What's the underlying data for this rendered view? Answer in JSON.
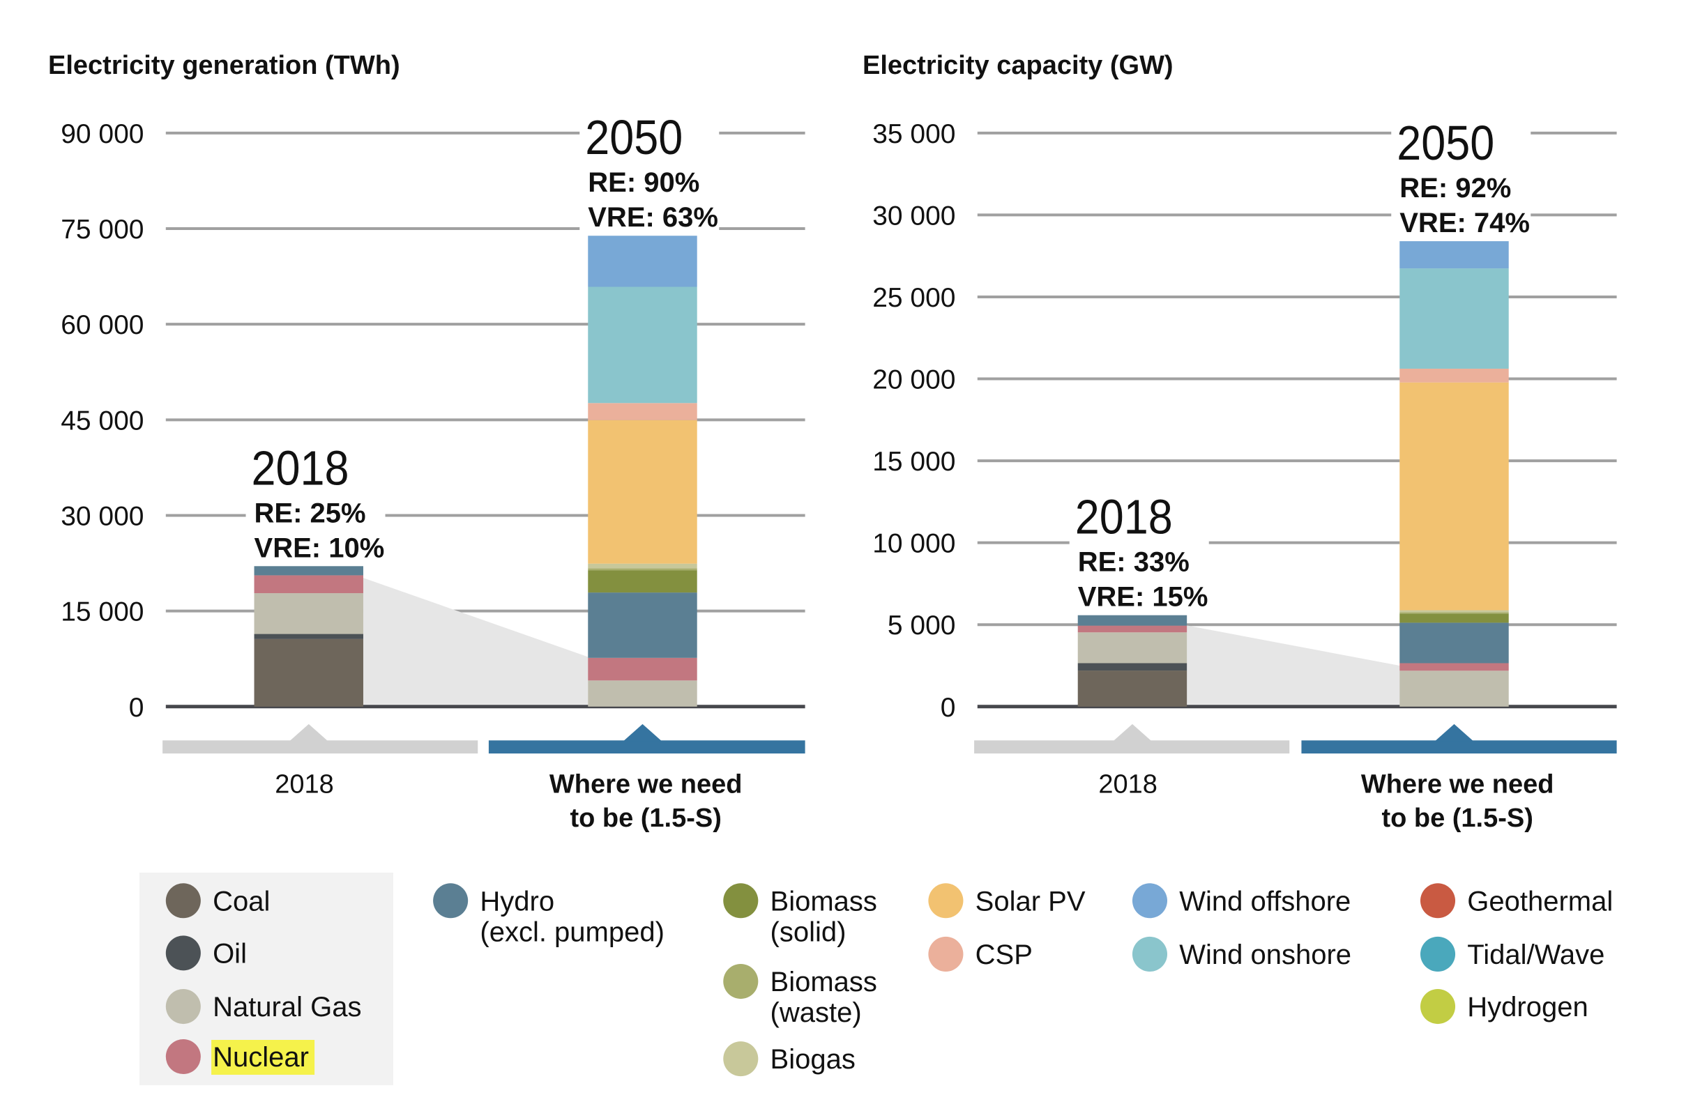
{
  "legend": {
    "items": [
      {
        "key": "coal",
        "label": [
          "Coal"
        ],
        "color": "#6e665b"
      },
      {
        "key": "oil",
        "label": [
          "Oil"
        ],
        "color": "#4c5256"
      },
      {
        "key": "gas",
        "label": [
          "Natural Gas"
        ],
        "color": "#c0beae"
      },
      {
        "key": "nuclear",
        "label": [
          "Nuclear"
        ],
        "color": "#c27780",
        "highlight": "#f5f24b"
      },
      {
        "key": "hydro",
        "label": [
          "Hydro",
          "(excl. pumped)"
        ],
        "color": "#5b7f93"
      },
      {
        "key": "biomass_solid",
        "label": [
          "Biomass",
          "(solid)"
        ],
        "color": "#83903f"
      },
      {
        "key": "biomass_waste",
        "label": [
          "Biomass",
          "(waste)"
        ],
        "color": "#a8ae6d"
      },
      {
        "key": "biogas",
        "label": [
          "Biogas"
        ],
        "color": "#c8c89a"
      },
      {
        "key": "solar_pv",
        "label": [
          "Solar PV"
        ],
        "color": "#f2c271"
      },
      {
        "key": "csp",
        "label": [
          "CSP"
        ],
        "color": "#ebb09b"
      },
      {
        "key": "wind_offshore",
        "label": [
          "Wind offshore"
        ],
        "color": "#78a8d6"
      },
      {
        "key": "wind_onshore",
        "label": [
          "Wind onshore"
        ],
        "color": "#8ac5cc"
      },
      {
        "key": "geothermal",
        "label": [
          "Geothermal"
        ],
        "color": "#c95a42"
      },
      {
        "key": "tidal",
        "label": [
          "Tidal/Wave"
        ],
        "color": "#4aa8bc"
      },
      {
        "key": "hydrogen",
        "label": [
          "Hydrogen"
        ],
        "color": "#c2cd44"
      }
    ]
  },
  "x_categories": [
    {
      "label": [
        "2018"
      ],
      "band_color": "#d1d1d1",
      "bold": false
    },
    {
      "label": [
        "Where we need",
        "to be (1.5-S)"
      ],
      "band_color": "#3574a0",
      "bold": true
    }
  ],
  "chart_data": [
    {
      "type": "bar",
      "stacked": true,
      "title": "Electricity generation (TWh)",
      "ylabel": "TWh",
      "ylim": [
        0,
        90000
      ],
      "yticks": [
        0,
        15000,
        30000,
        45000,
        60000,
        75000,
        90000
      ],
      "ytick_labels": [
        "0",
        "15 000",
        "30 000",
        "45 000",
        "60 000",
        "75 000",
        "90 000"
      ],
      "grid": true,
      "categories": [
        "2018",
        "Where we need to be (1.5-S)"
      ],
      "annotations": [
        {
          "year": "2018",
          "re": "RE: 25%",
          "vre": "VRE: 10%"
        },
        {
          "year": "2050",
          "re": "RE: 90%",
          "vre": "VRE: 63%"
        }
      ],
      "non_renewable_wedge": [
        20200,
        7800
      ],
      "series": [
        {
          "name": "Coal",
          "key": "coal",
          "values": [
            10600,
            0
          ]
        },
        {
          "name": "Oil",
          "key": "oil",
          "values": [
            800,
            0
          ]
        },
        {
          "name": "Natural Gas",
          "key": "gas",
          "values": [
            6400,
            4100
          ]
        },
        {
          "name": "Nuclear",
          "key": "nuclear",
          "values": [
            2800,
            3550
          ]
        },
        {
          "name": "Hydro (excl. pumped)",
          "key": "hydro",
          "values": [
            4300,
            10250
          ]
        },
        {
          "name": "Biomass (solid)",
          "key": "biomass_solid",
          "values": [
            350,
            3500
          ]
        },
        {
          "name": "Biomass (waste)",
          "key": "biomass_waste",
          "values": [
            80,
            300
          ]
        },
        {
          "name": "Biogas",
          "key": "biogas",
          "values": [
            100,
            730
          ]
        },
        {
          "name": "Solar PV",
          "key": "solar_pv",
          "values": [
            600,
            22530
          ]
        },
        {
          "name": "CSP",
          "key": "csp",
          "values": [
            20,
            2670
          ]
        },
        {
          "name": "Wind onshore",
          "key": "wind_onshore",
          "values": [
            1200,
            18240
          ]
        },
        {
          "name": "Wind offshore",
          "key": "wind_offshore",
          "values": [
            70,
            8050
          ]
        },
        {
          "name": "Geothermal",
          "key": "geothermal",
          "values": [
            90,
            1410
          ]
        },
        {
          "name": "Tidal/Wave",
          "key": "tidal",
          "values": [
            0,
            630
          ]
        },
        {
          "name": "Hydrogen",
          "key": "hydrogen",
          "values": [
            0,
            1990
          ]
        }
      ]
    },
    {
      "type": "bar",
      "stacked": true,
      "title": "Electricity capacity (GW)",
      "ylabel": "GW",
      "ylim": [
        0,
        35000
      ],
      "yticks": [
        0,
        5000,
        10000,
        15000,
        20000,
        25000,
        30000,
        35000
      ],
      "ytick_labels": [
        "0",
        "5 000",
        "10 000",
        "15 000",
        "20 000",
        "25 000",
        "30 000",
        "35 000"
      ],
      "grid": true,
      "categories": [
        "2018",
        "Where we need to be (1.5-S)"
      ],
      "annotations": [
        {
          "year": "2018",
          "re": "RE: 33%",
          "vre": "VRE: 15%"
        },
        {
          "year": "2050",
          "re": "RE: 92%",
          "vre": "VRE: 74%"
        }
      ],
      "non_renewable_wedge": [
        4950,
        2500
      ],
      "series": [
        {
          "name": "Coal",
          "key": "coal",
          "values": [
            2200,
            0
          ]
        },
        {
          "name": "Oil",
          "key": "oil",
          "values": [
            450,
            0
          ]
        },
        {
          "name": "Natural Gas",
          "key": "gas",
          "values": [
            1880,
            2190
          ]
        },
        {
          "name": "Nuclear",
          "key": "nuclear",
          "values": [
            410,
            460
          ]
        },
        {
          "name": "Hydro (excl. pumped)",
          "key": "hydro",
          "values": [
            1240,
            2470
          ]
        },
        {
          "name": "Biomass (solid)",
          "key": "biomass_solid",
          "values": [
            80,
            560
          ]
        },
        {
          "name": "Biomass (waste)",
          "key": "biomass_waste",
          "values": [
            20,
            80
          ]
        },
        {
          "name": "Biogas",
          "key": "biogas",
          "values": [
            20,
            120
          ]
        },
        {
          "name": "Solar PV",
          "key": "solar_pv",
          "values": [
            515,
            13900
          ]
        },
        {
          "name": "CSP",
          "key": "csp",
          "values": [
            5,
            840
          ]
        },
        {
          "name": "Wind onshore",
          "key": "wind_onshore",
          "values": [
            560,
            6120
          ]
        },
        {
          "name": "Wind offshore",
          "key": "wind_offshore",
          "values": [
            25,
            1970
          ]
        },
        {
          "name": "Geothermal",
          "key": "geothermal",
          "values": [
            15,
            200
          ]
        },
        {
          "name": "Tidal/Wave",
          "key": "tidal",
          "values": [
            0,
            360
          ]
        },
        {
          "name": "Hydrogen",
          "key": "hydrogen",
          "values": [
            0,
            940
          ]
        }
      ]
    }
  ]
}
